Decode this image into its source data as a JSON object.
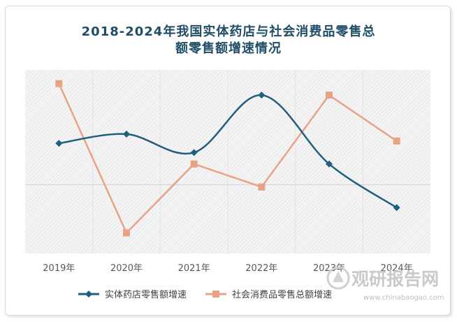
{
  "chart_data": {
    "type": "line",
    "title_lines": [
      "2018-2024年我国实体药店与社会消费品零售总",
      "额零售额增速情况"
    ],
    "categories": [
      "2019年",
      "2020年",
      "2021年",
      "2022年",
      "2023年",
      "2024年"
    ],
    "ylim": [
      -3,
      5
    ],
    "grid": false,
    "legend_position": "bottom",
    "series": [
      {
        "name": "实体药店零售额增速",
        "color": "#1f5f7d",
        "marker": "diamond",
        "smooth": true,
        "values": [
          1.8,
          2.2,
          1.4,
          3.9,
          0.9,
          -1.0
        ]
      },
      {
        "name": "社会消费品零售总额增速",
        "color": "#e8a385",
        "marker": "square",
        "smooth": false,
        "values": [
          4.4,
          -2.1,
          0.9,
          -0.1,
          3.9,
          1.9
        ]
      }
    ]
  },
  "watermark": {
    "brand": "观研报告网",
    "url": "www.chinabaogao.com"
  }
}
